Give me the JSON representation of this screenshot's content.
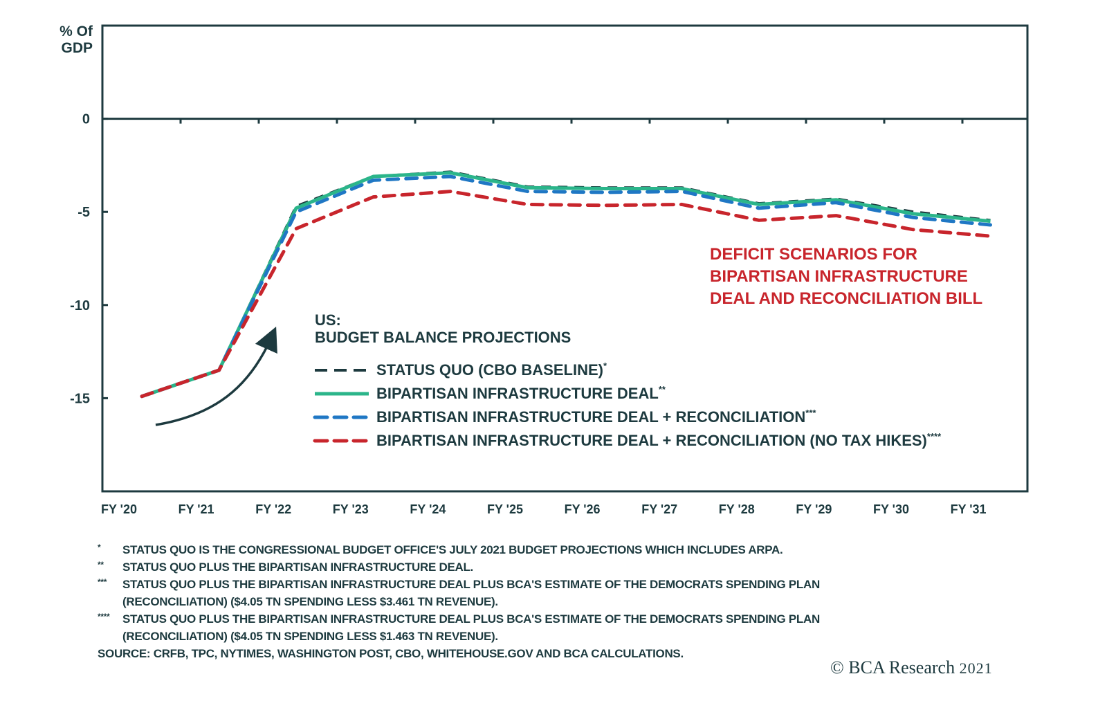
{
  "chart_data": {
    "type": "line",
    "title": "US: BUDGET BALANCE PROJECTIONS",
    "title_line1": "US:",
    "title_line2": "BUDGET BALANCE PROJECTIONS",
    "annotation": [
      "DEFICIT SCENARIOS FOR",
      "BIPARTISAN INFRASTRUCTURE",
      "DEAL AND RECONCILIATION BILL"
    ],
    "ylabel_line1": "% Of",
    "ylabel_line2": "GDP",
    "xlabel": "",
    "ylim": [
      -20,
      5
    ],
    "yticks": [
      0,
      -5,
      -10,
      -15
    ],
    "ytick_labels": [
      "0",
      "-5",
      "-10",
      "-15"
    ],
    "categories": [
      "FY '20",
      "FY '21",
      "FY '22",
      "FY '23",
      "FY '24",
      "FY '25",
      "FY '26",
      "FY '27",
      "FY '28",
      "FY '29",
      "FY '30",
      "FY '31"
    ],
    "grid": false,
    "legend_position": "center",
    "series": [
      {
        "name": "STATUS QUO (CBO BASELINE)",
        "suffix": "*",
        "color": "#1d3a3f",
        "style": "dashed",
        "values": [
          -14.9,
          -13.5,
          -4.7,
          -3.1,
          -2.85,
          -3.65,
          -3.7,
          -3.7,
          -4.55,
          -4.3,
          -5.0,
          -5.45
        ]
      },
      {
        "name": "BIPARTISAN INFRASTRUCTURE DEAL",
        "suffix": "**",
        "color": "#2bb58a",
        "style": "solid",
        "values": [
          -14.9,
          -13.5,
          -4.8,
          -3.1,
          -2.9,
          -3.7,
          -3.75,
          -3.75,
          -4.6,
          -4.35,
          -5.1,
          -5.5
        ]
      },
      {
        "name": "BIPARTISAN INFRASTRUCTURE DEAL + RECONCILIATION",
        "suffix": "***",
        "color": "#1f77c4",
        "style": "dashed",
        "values": [
          -14.9,
          -13.5,
          -5.0,
          -3.3,
          -3.1,
          -3.9,
          -3.95,
          -3.9,
          -4.8,
          -4.5,
          -5.3,
          -5.7
        ]
      },
      {
        "name": "BIPARTISAN INFRASTRUCTURE DEAL + RECONCILIATION (NO TAX HIKES)",
        "suffix": "****",
        "color": "#c8252c",
        "style": "dashed",
        "values": [
          -14.9,
          -13.5,
          -5.9,
          -4.2,
          -3.9,
          -4.6,
          -4.65,
          -4.6,
          -5.45,
          -5.2,
          -5.95,
          -6.3
        ]
      }
    ]
  },
  "footnotes": [
    {
      "mark": "*",
      "lines": [
        "STATUS QUO IS THE CONGRESSIONAL BUDGET OFFICE'S JULY 2021 BUDGET PROJECTIONS WHICH INCLUDES ARPA."
      ]
    },
    {
      "mark": "**",
      "lines": [
        "STATUS QUO PLUS THE BIPARTISAN INFRASTRUCTURE DEAL."
      ]
    },
    {
      "mark": "***",
      "lines": [
        "STATUS QUO PLUS THE BIPARTISAN INFRASTRUCTURE DEAL PLUS BCA'S ESTIMATE OF THE DEMOCRATS SPENDING PLAN",
        "(RECONCILIATION) ($4.05 TN SPENDING LESS $3.461 TN REVENUE)."
      ]
    },
    {
      "mark": "****",
      "lines": [
        "STATUS QUO PLUS THE BIPARTISAN INFRASTRUCTURE DEAL PLUS BCA'S ESTIMATE OF THE DEMOCRATS SPENDING PLAN",
        "(RECONCILIATION) ($4.05 TN SPENDING LESS $1.463 TN REVENUE)."
      ]
    }
  ],
  "source": "SOURCE: CRFB, TPC, NYTIMES, WASHINGTON POST, CBO, WHITEHOUSE.GOV AND BCA CALCULATIONS.",
  "copyright": {
    "symbol": "©",
    "brand": "BCA Research",
    "year": "2021"
  }
}
